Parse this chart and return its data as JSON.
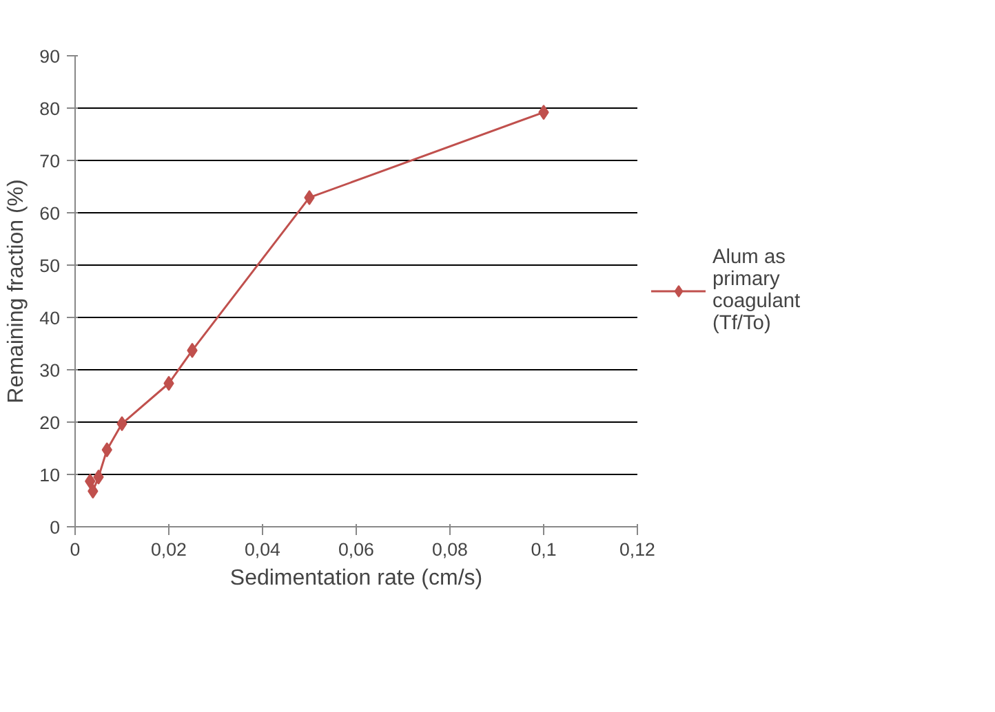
{
  "chart_data": {
    "type": "line",
    "xlabel": "Sedimentation rate (cm/s)",
    "ylabel": "Remaining fraction (%)",
    "x": [
      0.0032,
      0.0038,
      0.005,
      0.0068,
      0.01,
      0.02,
      0.025,
      0.05,
      0.1
    ],
    "series": [
      {
        "name": "Alum as primary coagulant (Tf/To)",
        "color": "#c0504d",
        "values": [
          8.7,
          6.8,
          9.5,
          14.7,
          19.7,
          27.4,
          33.7,
          62.9,
          79.2
        ]
      }
    ],
    "xlim": [
      0,
      0.12
    ],
    "xticks": [
      0,
      {
        "value": 0.02,
        "label": "0,02"
      },
      {
        "value": 0.04,
        "label": "0,04"
      },
      {
        "value": 0.06,
        "label": "0,06"
      },
      {
        "value": 0.08,
        "label": "0,08"
      },
      {
        "value": 0.1,
        "label": "0,1"
      },
      {
        "value": 0.12,
        "label": "0,12"
      }
    ],
    "ylim": [
      0,
      90
    ],
    "yticks": [
      0,
      10,
      20,
      30,
      40,
      50,
      60,
      70,
      80,
      90
    ],
    "grid": "y",
    "legend": "right",
    "marker": "diamond",
    "line_style": "solid"
  }
}
